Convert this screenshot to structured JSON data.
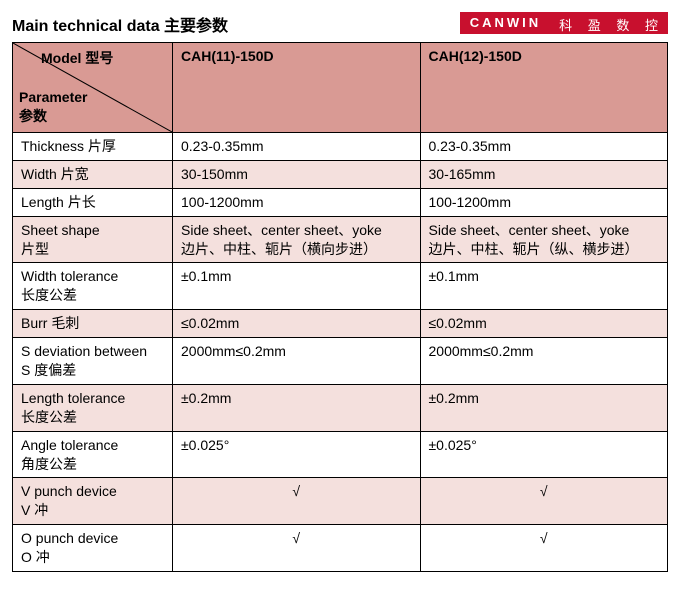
{
  "title": "Main technical data 主要参数",
  "brand": {
    "logo": "CANWIN",
    "cn": "科 盈 数 控"
  },
  "corner": {
    "model": "Model 型号",
    "parameter": "Parameter\n参数"
  },
  "models": [
    "CAH(11)-150D",
    "CAH(12)-150D"
  ],
  "rows": [
    {
      "label": "Thickness 片厚",
      "v1": "0.23-0.35mm",
      "v2": "0.23-0.35mm"
    },
    {
      "label": "Width 片宽",
      "v1": "30-150mm",
      "v2": "30-165mm"
    },
    {
      "label": "Length 片长",
      "v1": "100-1200mm",
      "v2": "100-1200mm"
    },
    {
      "label": "Sheet shape\n片型",
      "v1": "Side sheet、center sheet、yoke\n边片、中柱、轭片（横向步进）",
      "v2": "Side sheet、center sheet、yoke\n边片、中柱、轭片（纵、横步进）"
    },
    {
      "label": "Width tolerance\n长度公差",
      "v1": "±0.1mm",
      "v2": "±0.1mm"
    },
    {
      "label": "Burr 毛刺",
      "v1": "≤0.02mm",
      "v2": "≤0.02mm"
    },
    {
      "label": "S deviation between\nS 度偏差",
      "v1": "2000mm≤0.2mm",
      "v2": "2000mm≤0.2mm"
    },
    {
      "label": "Length tolerance\n长度公差",
      "v1": "±0.2mm",
      "v2": "±0.2mm"
    },
    {
      "label": "Angle tolerance\n角度公差",
      "v1": "±0.025°",
      "v2": "±0.025°"
    },
    {
      "label": "V punch device\nV 冲",
      "v1": "√",
      "v2": "√",
      "center": true
    },
    {
      "label": "O punch device\nO 冲",
      "v1": "√",
      "v2": "√",
      "center": true
    }
  ],
  "colors": {
    "header_bg": "#d99a94",
    "odd_bg": "#f4e0dd",
    "even_bg": "#ffffff",
    "border": "#000000",
    "brand_bg": "#c8102e"
  }
}
